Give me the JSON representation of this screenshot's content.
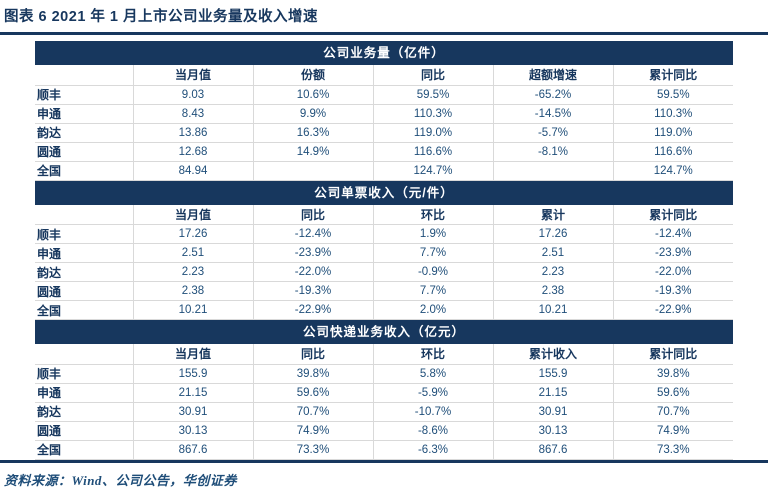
{
  "title": "图表 6   2021 年 1 月上市公司业务量及收入增速",
  "footer": {
    "source": "资料来源：Wind、公司公告，华创证券"
  },
  "colors": {
    "navy_accent": "#17375E",
    "data_text": "#1F4E79",
    "band_text": "#FFFFFF",
    "gridline": "#D9D9D9"
  },
  "sections": [
    {
      "header": "公司业务量（亿件）",
      "columns": [
        "",
        "当月值",
        "份额",
        "同比",
        "超额增速",
        "累计同比"
      ],
      "rows": [
        [
          "顺丰",
          "9.03",
          "10.6%",
          "59.5%",
          "-65.2%",
          "59.5%"
        ],
        [
          "申通",
          "8.43",
          "9.9%",
          "110.3%",
          "-14.5%",
          "110.3%"
        ],
        [
          "韵达",
          "13.86",
          "16.3%",
          "119.0%",
          "-5.7%",
          "119.0%"
        ],
        [
          "圆通",
          "12.68",
          "14.9%",
          "116.6%",
          "-8.1%",
          "116.6%"
        ],
        [
          "全国",
          "84.94",
          "",
          "124.7%",
          "",
          "124.7%"
        ]
      ]
    },
    {
      "header": "公司单票收入（元/件）",
      "columns": [
        "",
        "当月值",
        "同比",
        "环比",
        "累计",
        "累计同比"
      ],
      "rows": [
        [
          "顺丰",
          "17.26",
          "-12.4%",
          "1.9%",
          "17.26",
          "-12.4%"
        ],
        [
          "申通",
          "2.51",
          "-23.9%",
          "7.7%",
          "2.51",
          "-23.9%"
        ],
        [
          "韵达",
          "2.23",
          "-22.0%",
          "-0.9%",
          "2.23",
          "-22.0%"
        ],
        [
          "圆通",
          "2.38",
          "-19.3%",
          "7.7%",
          "2.38",
          "-19.3%"
        ],
        [
          "全国",
          "10.21",
          "-22.9%",
          "2.0%",
          "10.21",
          "-22.9%"
        ]
      ]
    },
    {
      "header": "公司快递业务收入（亿元）",
      "columns": [
        "",
        "当月值",
        "同比",
        "环比",
        "累计收入",
        "累计同比"
      ],
      "rows": [
        [
          "顺丰",
          "155.9",
          "39.8%",
          "5.8%",
          "155.9",
          "39.8%"
        ],
        [
          "申通",
          "21.15",
          "59.6%",
          "-5.9%",
          "21.15",
          "59.6%"
        ],
        [
          "韵达",
          "30.91",
          "70.7%",
          "-10.7%",
          "30.91",
          "70.7%"
        ],
        [
          "圆通",
          "30.13",
          "74.9%",
          "-8.6%",
          "30.13",
          "74.9%"
        ],
        [
          "全国",
          "867.6",
          "73.3%",
          "-6.3%",
          "867.6",
          "73.3%"
        ]
      ]
    }
  ]
}
